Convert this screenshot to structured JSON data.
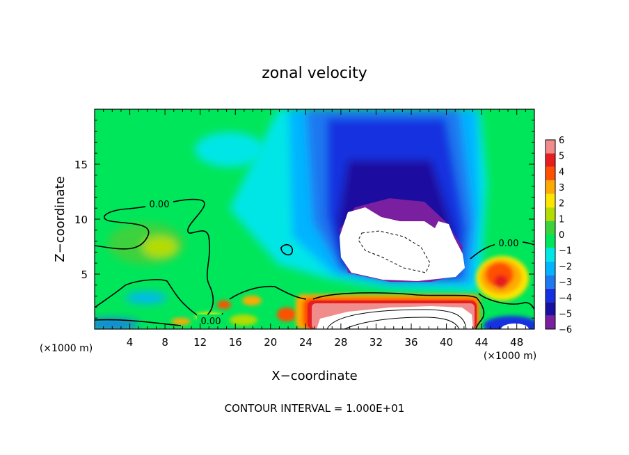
{
  "chart_data": {
    "type": "heatmap",
    "title": "zonal velocity",
    "xlabel": "X−coordinate",
    "ylabel": "Z−coordinate",
    "x_unit_left": "(×1000 m)",
    "x_unit_right": "(×1000 m)",
    "footer": "CONTOUR INTERVAL = 1.000E+01",
    "xlim": [
      0,
      50
    ],
    "ylim": [
      0,
      20
    ],
    "x_ticks": [
      4,
      8,
      12,
      16,
      20,
      24,
      28,
      32,
      36,
      40,
      44,
      48
    ],
    "x_tick_labels": [
      "4",
      "8",
      "12",
      "16",
      "20",
      "24",
      "28",
      "32",
      "36",
      "40",
      "44",
      "48"
    ],
    "y_ticks": [
      5,
      10,
      15
    ],
    "y_tick_labels": [
      "5",
      "10",
      "15"
    ],
    "colorbar": {
      "levels": [
        -6,
        -5,
        -4,
        -3,
        -2,
        -1,
        0,
        1,
        2,
        3,
        4,
        5,
        6
      ],
      "labels": [
        "−6",
        "−5",
        "−4",
        "−3",
        "−2",
        "−1",
        "0",
        "1",
        "2",
        "3",
        "4",
        "5",
        "6"
      ],
      "colors": [
        "#7a1fa0",
        "#1a10a0",
        "#1530e0",
        "#1e78f0",
        "#00b4ff",
        "#00e6e6",
        "#00e65a",
        "#3cd23c",
        "#b4dc00",
        "#fae600",
        "#ffaa00",
        "#ff5000",
        "#e61e1e",
        "#f08c8c"
      ]
    },
    "contour_labels": [
      "0.00",
      "0.00",
      "0.00"
    ],
    "features": {
      "background": "#00e65a",
      "negative_core": {
        "center": [
          34.5,
          9.5
        ],
        "value_range": [
          -6,
          -4
        ]
      },
      "positive_surface_jet": {
        "x_range": [
          23,
          43
        ],
        "z_range": [
          0,
          3
        ],
        "value_range": [
          4,
          6
        ]
      },
      "positive_east_blob": {
        "center": [
          46,
          4.5
        ],
        "value_range": [
          3,
          5
        ]
      }
    }
  }
}
